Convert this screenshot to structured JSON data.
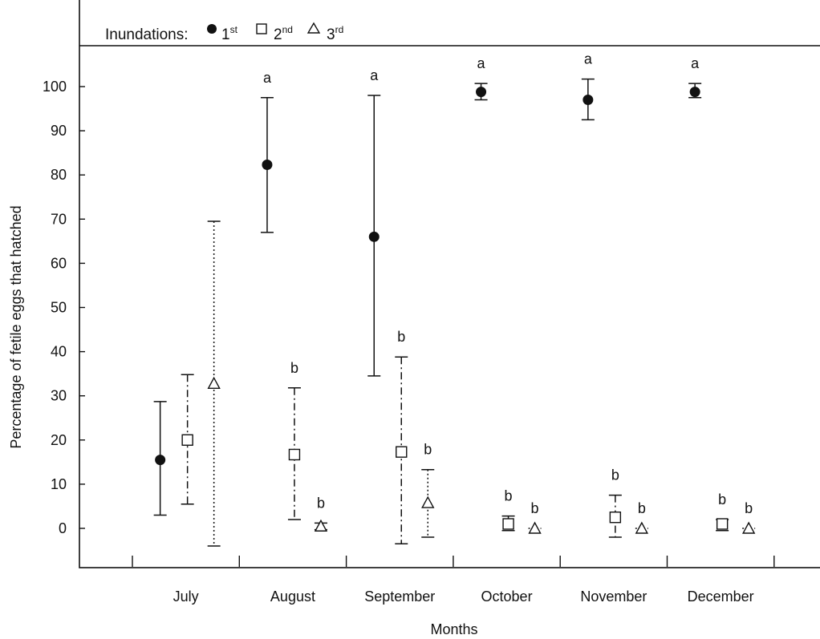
{
  "chart_data": {
    "type": "scatter",
    "subtype": "error-bar",
    "xlabel": "Months",
    "ylabel": "Percentage of fetile eggs that hatched",
    "ylim": [
      -8,
      118
    ],
    "yticks": [
      0,
      10,
      20,
      30,
      40,
      50,
      60,
      70,
      80,
      90,
      100
    ],
    "categories": [
      "July",
      "August",
      "September",
      "October",
      "November",
      "December"
    ],
    "grid": false,
    "legend": {
      "position": "top-left",
      "title": "Inundations:",
      "entries": [
        {
          "base": "1",
          "sup": "st"
        },
        {
          "base": "2",
          "sup": "nd"
        },
        {
          "base": "3",
          "sup": "rd"
        }
      ]
    },
    "series": [
      {
        "marker": "filled-circle",
        "line": "solid",
        "mean": [
          15.5,
          82.3,
          66.0,
          98.8,
          97.0,
          98.8
        ],
        "lower": [
          3.0,
          67.0,
          34.5,
          97.0,
          92.5,
          97.5
        ],
        "upper": [
          28.7,
          97.5,
          98.0,
          100.7,
          101.7,
          100.7
        ],
        "letters": [
          "",
          "a",
          "a",
          "a",
          "a",
          "a"
        ]
      },
      {
        "marker": "open-square",
        "line": "dash-dot",
        "mean": [
          20.0,
          16.7,
          17.3,
          1.0,
          2.5,
          1.0
        ],
        "lower": [
          5.5,
          2.0,
          -3.5,
          -0.5,
          -2.0,
          -0.5
        ],
        "upper": [
          34.8,
          31.8,
          38.8,
          2.8,
          7.5,
          2.0
        ],
        "letters": [
          "",
          "b",
          "b",
          "b",
          "b",
          "b"
        ]
      },
      {
        "marker": "open-triangle",
        "line": "dotted",
        "mean": [
          32.8,
          0.5,
          5.8,
          0.0,
          0.0,
          0.0
        ],
        "lower": [
          -4.0,
          -0.3,
          -2.0,
          0.0,
          0.0,
          0.0
        ],
        "upper": [
          69.5,
          1.2,
          13.3,
          0.0,
          0.0,
          0.0
        ],
        "letters": [
          "",
          "b",
          "b",
          "b",
          "b",
          "b"
        ]
      }
    ]
  }
}
